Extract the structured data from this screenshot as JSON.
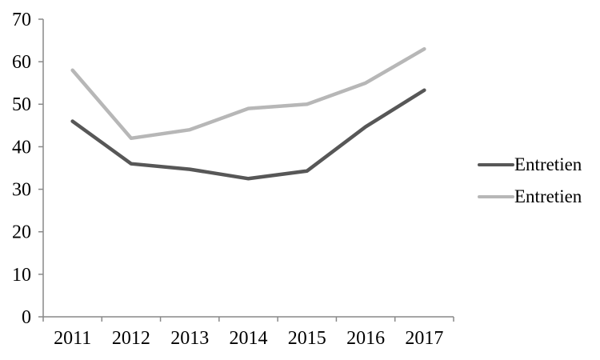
{
  "chart_data": {
    "type": "line",
    "title": "",
    "xlabel": "",
    "ylabel": "",
    "categories": [
      "2011",
      "2012",
      "2013",
      "2014",
      "2015",
      "2016",
      "2017"
    ],
    "series": [
      {
        "name": "Entretien",
        "color": "#575757",
        "values": [
          46,
          36,
          34.7,
          32.5,
          34.3,
          44.7,
          53.3
        ]
      },
      {
        "name": "Entretien",
        "color": "#b7b7b7",
        "values": [
          58,
          42,
          44,
          49,
          50,
          55,
          63
        ]
      }
    ],
    "ylim": [
      0,
      70
    ],
    "yticks": [
      0,
      10,
      20,
      30,
      40,
      50,
      60,
      70
    ],
    "grid": false,
    "legend_position": "right",
    "axis_color": "#898989",
    "text_color": "#000000",
    "background_color": "#ffffff"
  }
}
